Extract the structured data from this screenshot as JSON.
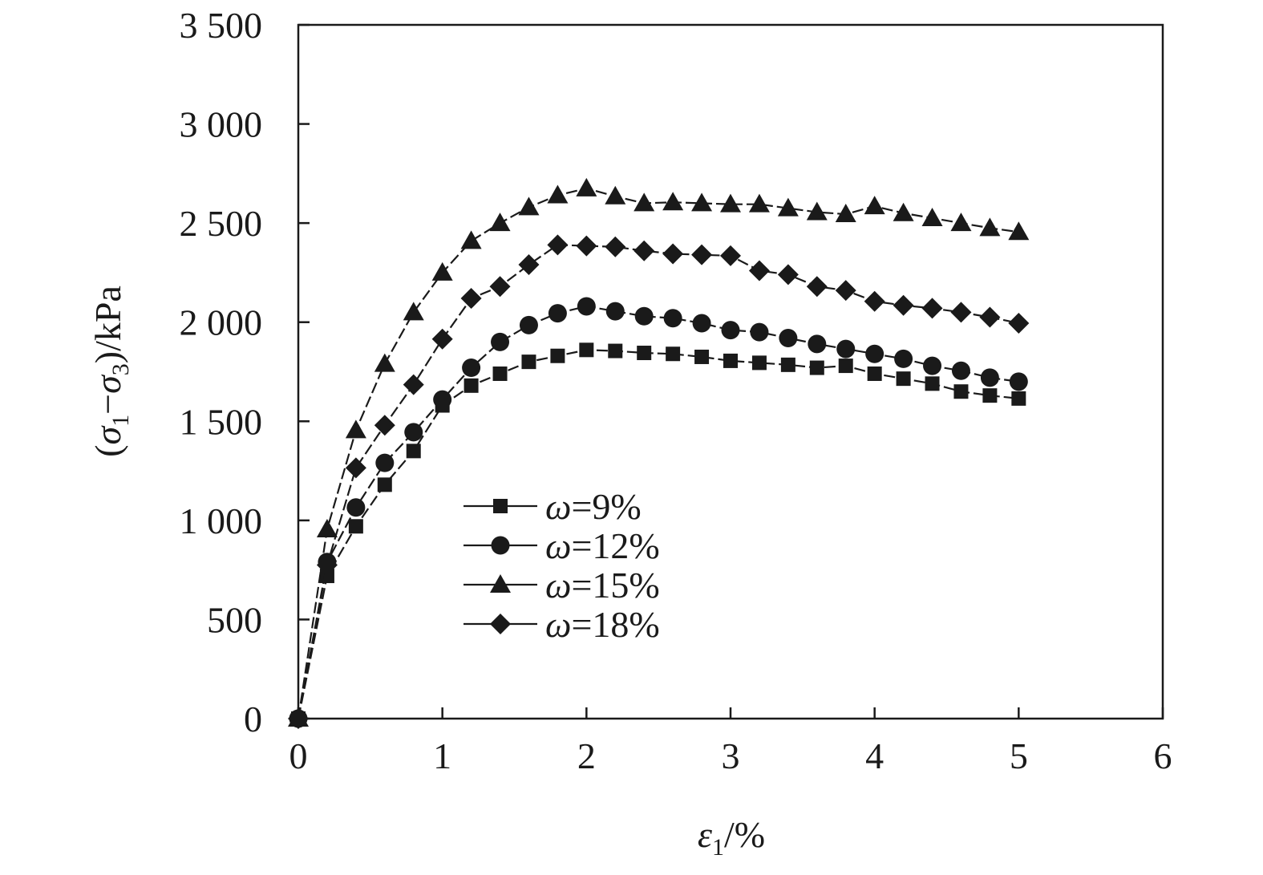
{
  "chart_data": {
    "type": "line",
    "xlabel": {
      "symbol": "ε",
      "sub": "1",
      "unit": "/%"
    },
    "ylabel": {
      "open": "(",
      "s1": "σ",
      "sub1": "1",
      "minus": "−",
      "s3": "σ",
      "sub3": "3",
      "unit": ")/kPa"
    },
    "xlim": [
      0,
      6
    ],
    "ylim": [
      0,
      3500
    ],
    "x_ticks": [
      0,
      1,
      2,
      3,
      4,
      5,
      6
    ],
    "x_tick_labels": [
      "0",
      "1",
      "2",
      "3",
      "4",
      "5",
      "6"
    ],
    "y_ticks": [
      0,
      500,
      1000,
      1500,
      2000,
      2500,
      3000,
      3500
    ],
    "y_tick_labels": [
      "0",
      "500",
      "1 000",
      "1 500",
      "2 000",
      "2 500",
      "3 000",
      "3 500"
    ],
    "grid": false,
    "legend_position": "center-left",
    "x": [
      0,
      0.2,
      0.4,
      0.6,
      0.8,
      1.0,
      1.2,
      1.4,
      1.6,
      1.8,
      2.0,
      2.2,
      2.4,
      2.6,
      2.8,
      3.0,
      3.2,
      3.4,
      3.6,
      3.8,
      4.0,
      4.2,
      4.4,
      4.6,
      4.8,
      5.0
    ],
    "series": [
      {
        "name": "ω=9%",
        "symbol": "ω",
        "label_rest": "=9%",
        "marker": "square",
        "dash": "dashed",
        "values": [
          0,
          720,
          970,
          1180,
          1350,
          1580,
          1680,
          1740,
          1800,
          1830,
          1860,
          1855,
          1845,
          1840,
          1825,
          1805,
          1795,
          1785,
          1770,
          1780,
          1740,
          1715,
          1690,
          1650,
          1630,
          1615
        ]
      },
      {
        "name": "ω=12%",
        "symbol": "ω",
        "label_rest": "=12%",
        "marker": "circle",
        "dash": "dashed",
        "values": [
          0,
          790,
          1065,
          1290,
          1445,
          1610,
          1770,
          1900,
          1985,
          2045,
          2080,
          2055,
          2030,
          2020,
          1995,
          1960,
          1950,
          1920,
          1890,
          1865,
          1840,
          1815,
          1780,
          1755,
          1720,
          1700
        ]
      },
      {
        "name": "ω=15%",
        "symbol": "ω",
        "label_rest": "=15%",
        "marker": "triangle",
        "dash": "dashed",
        "values": [
          0,
          955,
          1455,
          1790,
          2050,
          2250,
          2410,
          2500,
          2580,
          2640,
          2675,
          2635,
          2600,
          2605,
          2600,
          2595,
          2595,
          2575,
          2555,
          2545,
          2585,
          2550,
          2525,
          2500,
          2475,
          2455
        ]
      },
      {
        "name": "ω=18%",
        "symbol": "ω",
        "label_rest": "=18%",
        "marker": "diamond",
        "dash": "dashed",
        "values": [
          0,
          775,
          1265,
          1480,
          1685,
          1915,
          2120,
          2180,
          2290,
          2390,
          2385,
          2380,
          2360,
          2345,
          2340,
          2335,
          2260,
          2240,
          2180,
          2160,
          2105,
          2085,
          2070,
          2050,
          2025,
          1995
        ]
      }
    ],
    "colors": {
      "line": "#1a1a1a",
      "marker": "#1a1a1a",
      "axis": "#1a1a1a"
    }
  }
}
